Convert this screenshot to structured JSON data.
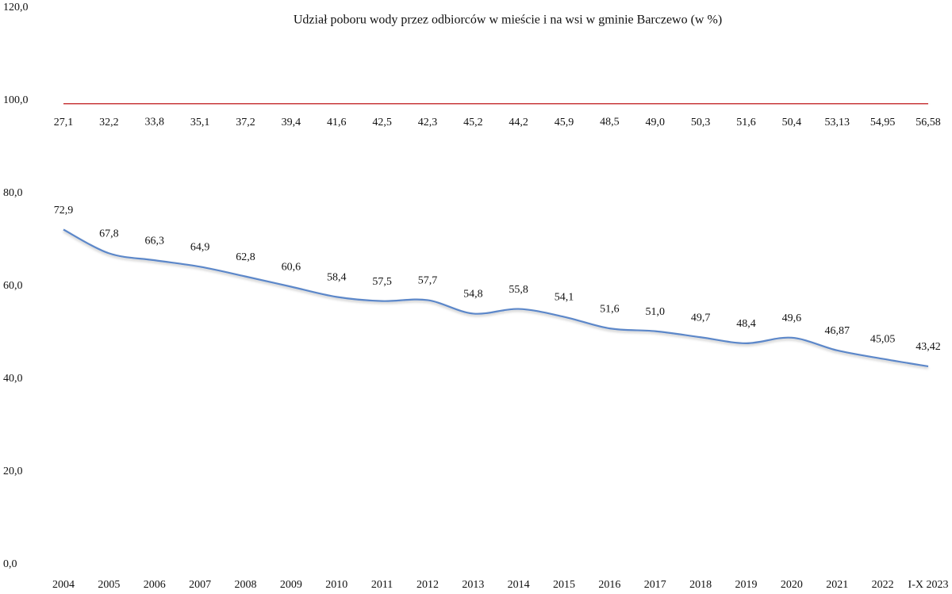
{
  "chart_data": {
    "type": "stacked-line",
    "title": "Udział poboru wody przez odbiorców w mieście i na wsi w gminie Barczewo (w %)",
    "categories": [
      "2004",
      "2005",
      "2006",
      "2007",
      "2008",
      "2009",
      "2010",
      "2011",
      "2012",
      "2013",
      "2014",
      "2015",
      "2016",
      "2017",
      "2018",
      "2019",
      "2020",
      "2021",
      "2022",
      "I-X 2023"
    ],
    "series": [
      {
        "color": "#5b87c9",
        "values": [
          72.9,
          67.8,
          66.3,
          64.9,
          62.8,
          60.6,
          58.4,
          57.5,
          57.7,
          54.8,
          55.8,
          54.1,
          51.6,
          51.0,
          49.7,
          48.4,
          49.6,
          46.87,
          45.05,
          43.42
        ],
        "value_labels": [
          "72,9",
          "67,8",
          "66,3",
          "64,9",
          "62,8",
          "60,6",
          "58,4",
          "57,5",
          "57,7",
          "54,8",
          "55,8",
          "54,1",
          "51,6",
          "51,0",
          "49,7",
          "48,4",
          "49,6",
          "46,87",
          "45,05",
          "43,42"
        ]
      },
      {
        "color": "#c8373a",
        "values": [
          27.1,
          32.2,
          33.8,
          35.1,
          37.2,
          39.4,
          41.6,
          42.5,
          42.3,
          45.2,
          44.2,
          45.9,
          48.5,
          49.0,
          50.3,
          51.6,
          50.4,
          53.13,
          54.95,
          56.58
        ],
        "value_labels": [
          "27,1",
          "32,2",
          "33,8",
          "35,1",
          "37,2",
          "39,4",
          "41,6",
          "42,5",
          "42,3",
          "45,2",
          "44,2",
          "45,9",
          "48,5",
          "49,0",
          "50,3",
          "51,6",
          "50,4",
          "53,13",
          "54,95",
          "56,58"
        ]
      }
    ],
    "ylim": [
      0,
      120
    ],
    "yticks": [
      {
        "value": 0,
        "label": "0,0"
      },
      {
        "value": 20,
        "label": "20,0"
      },
      {
        "value": 40,
        "label": "40,0"
      },
      {
        "value": 60,
        "label": "60,0"
      },
      {
        "value": 80,
        "label": "80,0"
      },
      {
        "value": 100,
        "label": "100,0"
      },
      {
        "value": 120,
        "label": "120,0"
      }
    ]
  }
}
